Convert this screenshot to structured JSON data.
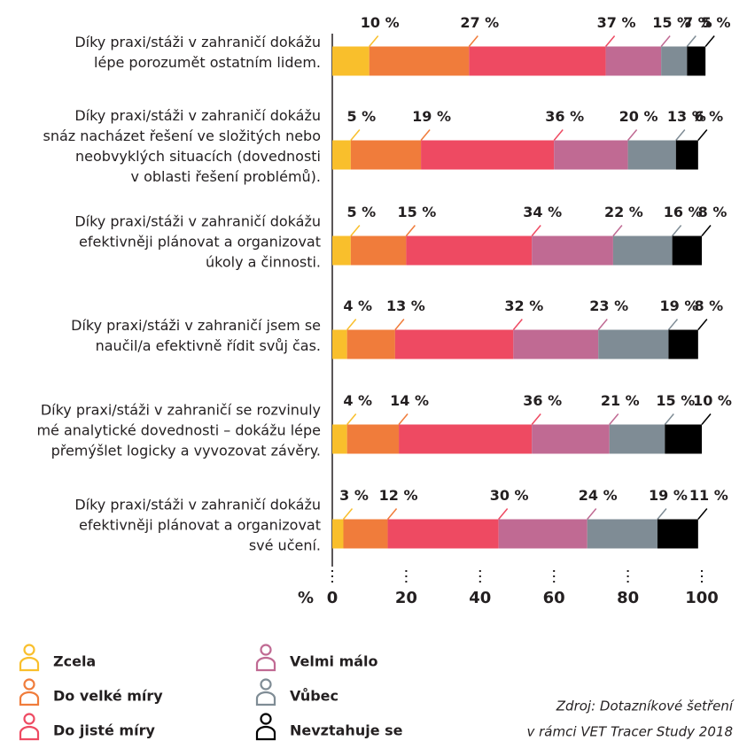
{
  "chart_data": {
    "type": "stacked_bar_horizontal",
    "categories": [
      [
        "Díky praxi/stáži v zahraničí dokážu",
        "lépe porozumět ostatním lidem."
      ],
      [
        "Díky praxi/stáži v zahraničí dokážu",
        "snáz nacházet řešení ve složitých nebo",
        "neobvyklých situacích (dovednosti",
        "v oblasti řešení problémů)."
      ],
      [
        "Díky praxi/stáži v zahraničí dokážu",
        "efektivněji plánovat a organizovat",
        "úkoly a činnosti."
      ],
      [
        "Díky praxi/stáži v zahraničí jsem se",
        "naučil/a efektivně řídit svůj čas."
      ],
      [
        "Díky praxi/stáži v zahraničí se rozvinuly",
        "mé analytické dovednosti – dokážu lépe",
        "přemýšlet logicky a vyvozovat závěry."
      ],
      [
        "Díky praxi/stáži v zahraničí dokážu",
        "efektivněji plánovat a organizovat",
        "své učení."
      ]
    ],
    "series": [
      {
        "name": "Zcela",
        "color": "#f9bf2c",
        "values": [
          10,
          5,
          5,
          4,
          4,
          3
        ],
        "value_labels": [
          "10 %",
          "5 %",
          "5 %",
          "4 %",
          "4 %",
          "3 %"
        ]
      },
      {
        "name": "Do velké míry",
        "color": "#f07c3b",
        "values": [
          27,
          19,
          15,
          13,
          14,
          12
        ],
        "value_labels": [
          "27 %",
          "19 %",
          "15 %",
          "13 %",
          "14 %",
          "12 %"
        ]
      },
      {
        "name": "Do jisté míry",
        "color": "#ee4a62",
        "values": [
          37,
          36,
          34,
          32,
          36,
          30
        ],
        "value_labels": [
          "37 %",
          "36 %",
          "34 %",
          "32 %",
          "36 %",
          "30 %"
        ]
      },
      {
        "name": "Velmi málo",
        "color": "#c06a93",
        "values": [
          15,
          20,
          22,
          23,
          21,
          24
        ],
        "value_labels": [
          "15 %",
          "20 %",
          "22 %",
          "23 %",
          "21 %",
          "24 %"
        ]
      },
      {
        "name": "Vůbec",
        "color": "#7f8c95",
        "values": [
          7,
          13,
          16,
          19,
          15,
          19
        ],
        "value_labels": [
          "7 %",
          "13 %",
          "16 %",
          "19 %",
          "15 %",
          "19 %"
        ]
      },
      {
        "name": "Nevztahuje se",
        "color": "#000000",
        "values": [
          5,
          6,
          8,
          8,
          10,
          11
        ],
        "value_labels": [
          "5 %",
          "6 %",
          "8 %",
          "8 %",
          "10 %",
          "11 %"
        ]
      }
    ],
    "x_label": "%",
    "xlim": [
      0,
      100
    ],
    "xticks": [
      0,
      20,
      40,
      60,
      80,
      100
    ],
    "source": [
      "Zdroj: Dotazníkové šetření",
      "v rámci VET Tracer Study 2018"
    ]
  }
}
